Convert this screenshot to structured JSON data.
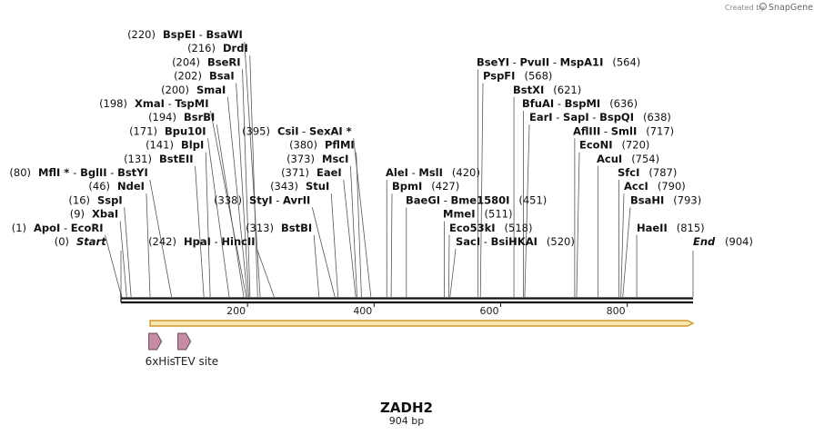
{
  "app": {
    "credit_text": "Created by",
    "brand_text": "SnapGene"
  },
  "map": {
    "name": "ZADH2",
    "length_label": "904 bp",
    "length_bp": 904,
    "colors": {
      "backbone": "#111111",
      "orf_fill": "#f7e7b0",
      "orf_edge": "#d49a2a",
      "feature_fill": "#c58ba3",
      "feature_edge": "#6a4a5a",
      "leader_line": "#555555"
    },
    "ruler_ticks": [
      {
        "bp": 200,
        "label": "200"
      },
      {
        "bp": 400,
        "label": "400"
      },
      {
        "bp": 600,
        "label": "600"
      },
      {
        "bp": 800,
        "label": "800"
      }
    ],
    "orf": {
      "start_bp": 46,
      "end_bp": 904
    },
    "features": [
      {
        "name": "6xHis",
        "bp": 54,
        "icon": "arrow-right-icon"
      },
      {
        "name": "TEV site",
        "bp": 100,
        "icon": "arrow-right-icon"
      }
    ],
    "sites": [
      {
        "parts": [
          {
            "t": "BspEI",
            "s": "enz"
          },
          {
            "t": "  -  ",
            "s": "num"
          },
          {
            "t": "BsaWI",
            "s": "enz"
          }
        ],
        "pos": "(220)",
        "pos_side": "left",
        "bp": 220,
        "row": 0
      },
      {
        "parts": [
          {
            "t": "DrdI",
            "s": "enz"
          }
        ],
        "pos": "(216)",
        "pos_side": "left",
        "bp": 216,
        "row": 1
      },
      {
        "parts": [
          {
            "t": "BseRI",
            "s": "enz"
          }
        ],
        "pos": "(204)",
        "pos_side": "left",
        "bp": 204,
        "row": 2
      },
      {
        "parts": [
          {
            "t": "BsaI",
            "s": "enz"
          }
        ],
        "pos": "(202)",
        "pos_side": "left",
        "bp": 202,
        "row": 3
      },
      {
        "parts": [
          {
            "t": "SmaI",
            "s": "enz"
          }
        ],
        "pos": "(200)",
        "pos_side": "left",
        "bp": 200,
        "row": 4
      },
      {
        "parts": [
          {
            "t": "XmaI",
            "s": "enz"
          },
          {
            "t": "  -  ",
            "s": "num"
          },
          {
            "t": "TspMI",
            "s": "enz"
          }
        ],
        "pos": "(198)",
        "pos_side": "left",
        "bp": 198,
        "row": 5
      },
      {
        "parts": [
          {
            "t": "BsrBI",
            "s": "enz"
          }
        ],
        "pos": "(194)",
        "pos_side": "left",
        "bp": 194,
        "row": 6
      },
      {
        "parts": [
          {
            "t": "Bpu10I",
            "s": "enz"
          }
        ],
        "pos": "(171)",
        "pos_side": "left",
        "bp": 171,
        "row": 7
      },
      {
        "parts": [
          {
            "t": "BlpI",
            "s": "enz"
          }
        ],
        "pos": "(141)",
        "pos_side": "left",
        "bp": 141,
        "row": 8
      },
      {
        "parts": [
          {
            "t": "BstEII",
            "s": "enz"
          }
        ],
        "pos": "(131)",
        "pos_side": "left",
        "bp": 131,
        "row": 9
      },
      {
        "parts": [
          {
            "t": "MflI",
            "s": "enz"
          },
          {
            "t": " * ",
            "s": "enz"
          },
          {
            "t": " -  ",
            "s": "num"
          },
          {
            "t": "BglII",
            "s": "enz"
          },
          {
            "t": "  -  ",
            "s": "num"
          },
          {
            "t": "BstYI",
            "s": "enz"
          }
        ],
        "pos": "(80)",
        "pos_side": "left",
        "bp": 80,
        "row": 10
      },
      {
        "parts": [
          {
            "t": "NdeI",
            "s": "enz"
          }
        ],
        "pos": "(46)",
        "pos_side": "left",
        "bp": 46,
        "row": 11
      },
      {
        "parts": [
          {
            "t": "SspI",
            "s": "enz"
          }
        ],
        "pos": "(16)",
        "pos_side": "left",
        "bp": 16,
        "row": 12
      },
      {
        "parts": [
          {
            "t": "XbaI",
            "s": "enz"
          }
        ],
        "pos": "(9)",
        "pos_side": "left",
        "bp": 9,
        "row": 13
      },
      {
        "parts": [
          {
            "t": "ApoI",
            "s": "enz"
          },
          {
            "t": "  -  ",
            "s": "num"
          },
          {
            "t": "EcoRI",
            "s": "enz"
          }
        ],
        "pos": "(1)",
        "pos_side": "left",
        "bp": 1,
        "row": 14
      },
      {
        "parts": [
          {
            "t": "Start",
            "s": "it"
          }
        ],
        "pos": "(0)",
        "pos_side": "left",
        "bp": 0,
        "row": 15
      },
      {
        "parts": [
          {
            "t": "HpaI",
            "s": "enz"
          },
          {
            "t": "  -  ",
            "s": "num"
          },
          {
            "t": "HincII",
            "s": "enz"
          }
        ],
        "pos": "(242)",
        "pos_side": "left",
        "bp": 242,
        "row": 15
      },
      {
        "parts": [
          {
            "t": "StyI",
            "s": "enz"
          },
          {
            "t": "  -  ",
            "s": "num"
          },
          {
            "t": "AvrII",
            "s": "enz"
          }
        ],
        "pos": "(338)",
        "pos_side": "left",
        "bp": 338,
        "row": 12
      },
      {
        "parts": [
          {
            "t": "BstBI",
            "s": "enz"
          }
        ],
        "pos": "(313)",
        "pos_side": "left",
        "bp": 313,
        "row": 14
      },
      {
        "parts": [
          {
            "t": "StuI",
            "s": "enz"
          }
        ],
        "pos": "(343)",
        "pos_side": "left",
        "bp": 343,
        "row": 11
      },
      {
        "parts": [
          {
            "t": "EaeI",
            "s": "enz"
          }
        ],
        "pos": "(371)",
        "pos_side": "left",
        "bp": 371,
        "row": 10
      },
      {
        "parts": [
          {
            "t": "MscI",
            "s": "enz"
          }
        ],
        "pos": "(373)",
        "pos_side": "left",
        "bp": 373,
        "row": 9
      },
      {
        "parts": [
          {
            "t": "PflMI",
            "s": "enz"
          }
        ],
        "pos": "(380)",
        "pos_side": "left",
        "bp": 380,
        "row": 8
      },
      {
        "parts": [
          {
            "t": "CsiI",
            "s": "enz"
          },
          {
            "t": "  -  ",
            "s": "num"
          },
          {
            "t": "SexAI",
            "s": "enz"
          },
          {
            "t": " *",
            "s": "enz"
          }
        ],
        "pos": "(395)",
        "pos_side": "left",
        "bp": 395,
        "row": 7
      },
      {
        "parts": [
          {
            "t": "AleI",
            "s": "enz"
          },
          {
            "t": "  -  ",
            "s": "num"
          },
          {
            "t": "MslI",
            "s": "enz"
          }
        ],
        "pos": "(420)",
        "pos_side": "right",
        "bp": 420,
        "row": 10
      },
      {
        "parts": [
          {
            "t": "BpmI",
            "s": "enz"
          }
        ],
        "pos": "(427)",
        "pos_side": "right",
        "bp": 427,
        "row": 11
      },
      {
        "parts": [
          {
            "t": "BaeGI",
            "s": "enz"
          },
          {
            "t": "  -  ",
            "s": "num"
          },
          {
            "t": "Bme1580I",
            "s": "enz"
          }
        ],
        "pos": "(451)",
        "pos_side": "right",
        "bp": 451,
        "row": 12
      },
      {
        "parts": [
          {
            "t": "MmeI",
            "s": "enz"
          }
        ],
        "pos": "(511)",
        "pos_side": "right",
        "bp": 511,
        "row": 13
      },
      {
        "parts": [
          {
            "t": "Eco53kI",
            "s": "enz"
          }
        ],
        "pos": "(518)",
        "pos_side": "right",
        "bp": 518,
        "row": 14
      },
      {
        "parts": [
          {
            "t": "SacI",
            "s": "enz"
          },
          {
            "t": "  -  ",
            "s": "num"
          },
          {
            "t": "BsiHKAI",
            "s": "enz"
          }
        ],
        "pos": "(520)",
        "pos_side": "right",
        "bp": 520,
        "row": 15
      },
      {
        "parts": [
          {
            "t": "BseYI",
            "s": "enz"
          },
          {
            "t": "  -  ",
            "s": "num"
          },
          {
            "t": "PvuII",
            "s": "enz"
          },
          {
            "t": "  -  ",
            "s": "num"
          },
          {
            "t": "MspA1I",
            "s": "enz"
          }
        ],
        "pos": "(564)",
        "pos_side": "right",
        "bp": 564,
        "row": 2
      },
      {
        "parts": [
          {
            "t": "PspFI",
            "s": "enz"
          }
        ],
        "pos": "(568)",
        "pos_side": "right",
        "bp": 568,
        "row": 3
      },
      {
        "parts": [
          {
            "t": "BstXI",
            "s": "enz"
          }
        ],
        "pos": "(621)",
        "pos_side": "right",
        "bp": 621,
        "row": 4
      },
      {
        "parts": [
          {
            "t": "BfuAI",
            "s": "enz"
          },
          {
            "t": "  -  ",
            "s": "num"
          },
          {
            "t": "BspMI",
            "s": "enz"
          }
        ],
        "pos": "(636)",
        "pos_side": "right",
        "bp": 636,
        "row": 5
      },
      {
        "parts": [
          {
            "t": "EarI",
            "s": "enz"
          },
          {
            "t": "  -  ",
            "s": "num"
          },
          {
            "t": "SapI",
            "s": "enz"
          },
          {
            "t": "  -  ",
            "s": "num"
          },
          {
            "t": "BspQI",
            "s": "enz"
          }
        ],
        "pos": "(638)",
        "pos_side": "right",
        "bp": 638,
        "row": 6
      },
      {
        "parts": [
          {
            "t": "AflIII",
            "s": "enz"
          },
          {
            "t": "  -  ",
            "s": "num"
          },
          {
            "t": "SmlI",
            "s": "enz"
          }
        ],
        "pos": "(717)",
        "pos_side": "right",
        "bp": 717,
        "row": 7
      },
      {
        "parts": [
          {
            "t": "EcoNI",
            "s": "enz"
          }
        ],
        "pos": "(720)",
        "pos_side": "right",
        "bp": 720,
        "row": 8
      },
      {
        "parts": [
          {
            "t": "AcuI",
            "s": "enz"
          }
        ],
        "pos": "(754)",
        "pos_side": "right",
        "bp": 754,
        "row": 9
      },
      {
        "parts": [
          {
            "t": "SfcI",
            "s": "enz"
          }
        ],
        "pos": "(787)",
        "pos_side": "right",
        "bp": 787,
        "row": 10
      },
      {
        "parts": [
          {
            "t": "AccI",
            "s": "enz"
          }
        ],
        "pos": "(790)",
        "pos_side": "right",
        "bp": 790,
        "row": 11
      },
      {
        "parts": [
          {
            "t": "BsaHI",
            "s": "enz"
          }
        ],
        "pos": "(793)",
        "pos_side": "right",
        "bp": 793,
        "row": 12
      },
      {
        "parts": [
          {
            "t": "HaeII",
            "s": "enz"
          }
        ],
        "pos": "(815)",
        "pos_side": "right",
        "bp": 815,
        "row": 14
      },
      {
        "parts": [
          {
            "t": "End",
            "s": "it"
          }
        ],
        "pos": "(904)",
        "pos_side": "right",
        "bp": 904,
        "row": 15
      }
    ]
  }
}
